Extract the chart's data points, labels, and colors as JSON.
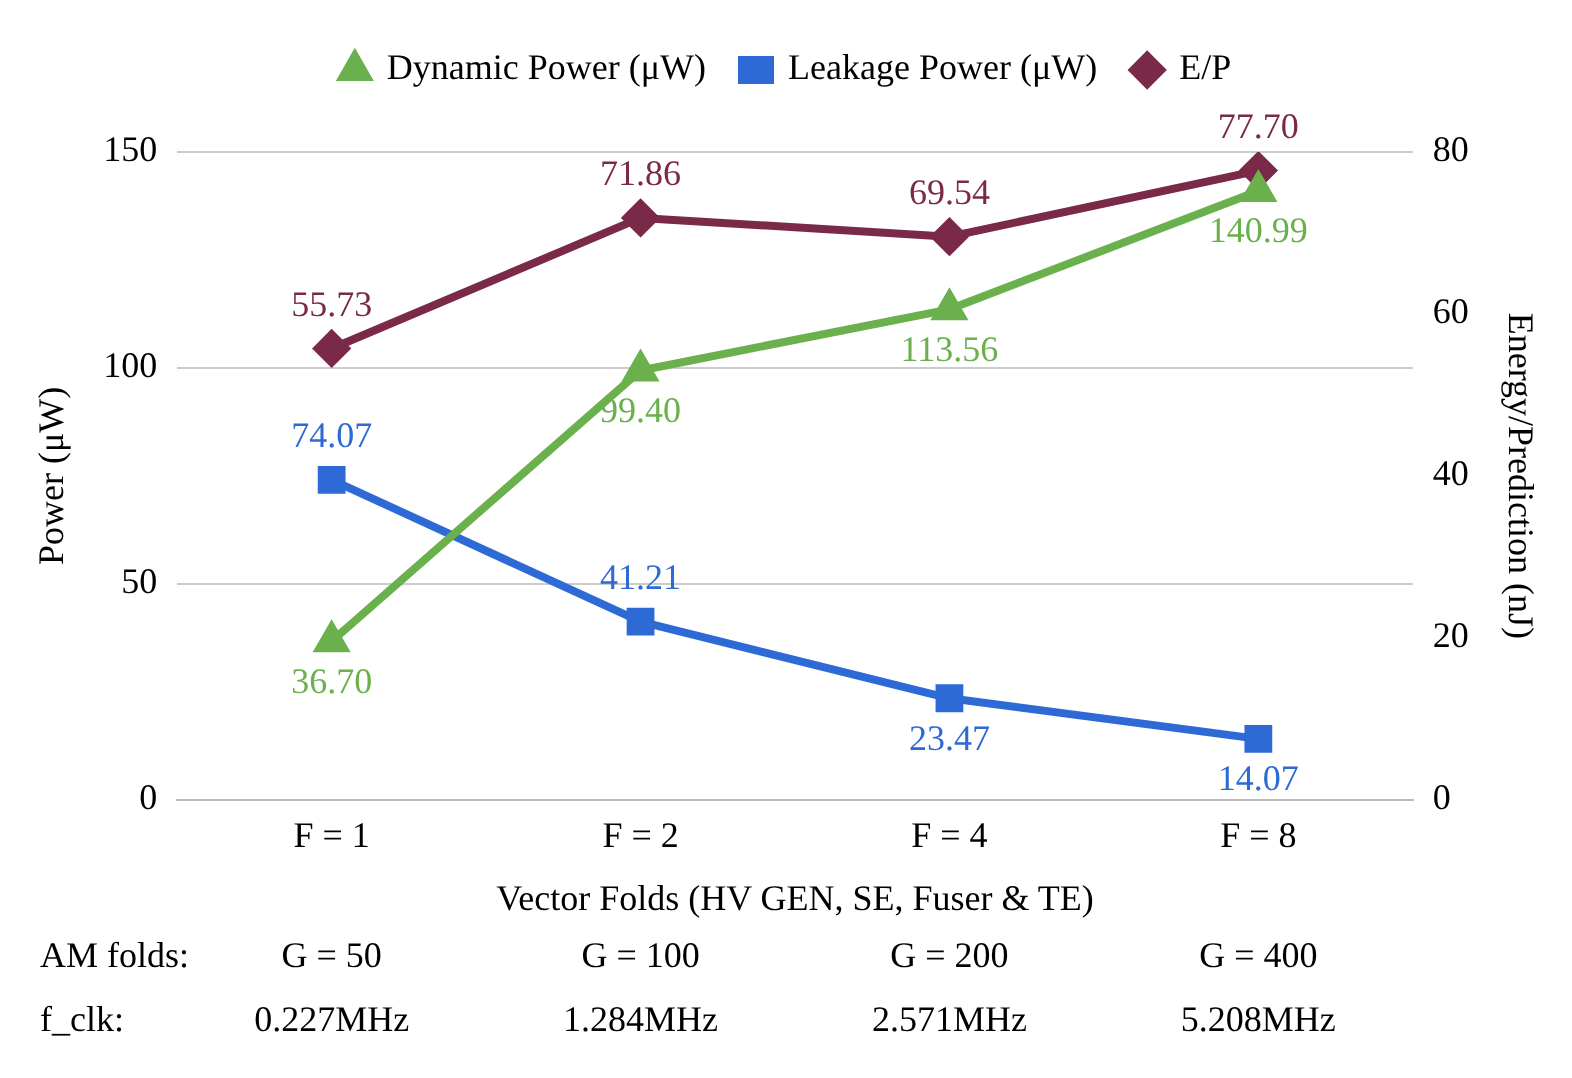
{
  "chart_data": {
    "type": "line",
    "categories": [
      "F = 1",
      "F = 2",
      "F = 4",
      "F = 8"
    ],
    "xlabel": "Vector Folds (HV GEN, SE, Fuser & TE)",
    "ylabel": "Power (μW)",
    "y2label": "Energy/Prediction (nJ)",
    "series": [
      {
        "name": "Dynamic Power (μW)",
        "color": "#6ab04c",
        "marker": "triangle",
        "values": [
          36.7,
          99.4,
          113.56,
          140.99
        ],
        "value_labels": [
          "36.70",
          "99.40",
          "113.56",
          "140.99"
        ]
      },
      {
        "name": "Leakage Power (μW)",
        "color": "#2e6ad6",
        "marker": "square",
        "values": [
          74.07,
          41.21,
          23.47,
          14.07
        ],
        "value_labels": [
          "74.07",
          "41.21",
          "23.47",
          "14.07"
        ]
      },
      {
        "name": "E/P",
        "color": "#7a2a48",
        "marker": "diamond",
        "axis": "y2",
        "values": [
          55.73,
          71.86,
          69.54,
          77.7
        ],
        "value_labels": [
          "55.73",
          "71.86",
          "69.54",
          "77.70"
        ]
      }
    ],
    "ylim": [
      0,
      150
    ],
    "yticks": [
      0,
      50,
      100,
      150
    ],
    "y2lim": [
      0,
      80
    ],
    "y2ticks": [
      0,
      20,
      40,
      60,
      80
    ],
    "grid": "y",
    "legend": "top",
    "annotations": [
      "AM folds:",
      "G = 50",
      "G = 100",
      "G = 200",
      "G = 400",
      "f_clk:",
      "0.227MHz",
      "1.284MHz",
      "2.571MHz",
      "5.208MHz"
    ]
  }
}
